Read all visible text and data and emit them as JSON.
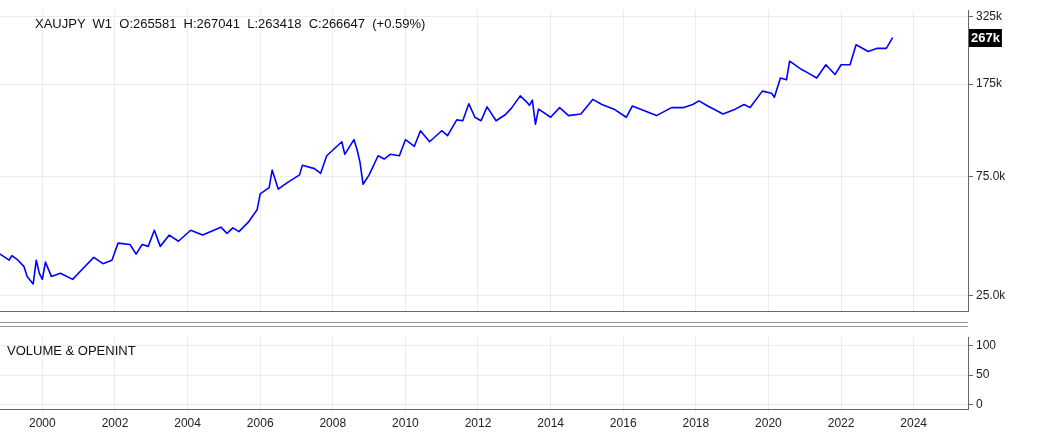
{
  "chart_data": [
    {
      "type": "line",
      "title": "XAUJPY  W1  O:265581  H:267041  L:263418  C:266647  (+0.59%)",
      "x": [
        "1998-11",
        "1999-02",
        "1999-03",
        "1999-05",
        "1999-07",
        "1999-08",
        "1999-10",
        "1999-11",
        "1999-12",
        "2000-01",
        "2000-02",
        "2000-04",
        "2000-07",
        "2000-11",
        "2001-02",
        "2001-06",
        "2001-09",
        "2001-12",
        "2002-02",
        "2002-06",
        "2002-08",
        "2002-10",
        "2002-12",
        "2003-02",
        "2003-04",
        "2003-07",
        "2003-10",
        "2004-02",
        "2004-06",
        "2004-12",
        "2005-02",
        "2005-04",
        "2005-06",
        "2005-09",
        "2005-12",
        "2006-01",
        "2006-04",
        "2006-05",
        "2006-07",
        "2006-10",
        "2007-02",
        "2007-03",
        "2007-07",
        "2007-09",
        "2007-11",
        "2008-04",
        "2008-05",
        "2008-08",
        "2008-09",
        "2008-10",
        "2008-11",
        "2009-01",
        "2009-04",
        "2009-06",
        "2009-08",
        "2009-11",
        "2010-01",
        "2010-04",
        "2010-06",
        "2010-09",
        "2011-01",
        "2011-03",
        "2011-06",
        "2011-08",
        "2011-10",
        "2011-12",
        "2012-02",
        "2012-04",
        "2012-07",
        "2012-10",
        "2012-12",
        "2013-03",
        "2013-05",
        "2013-06",
        "2013-07",
        "2013-08",
        "2013-09",
        "2014-01",
        "2014-04",
        "2014-07",
        "2014-11",
        "2015-03",
        "2015-06",
        "2015-10",
        "2016-02",
        "2016-04",
        "2016-08",
        "2016-12",
        "2017-05",
        "2017-09",
        "2017-12",
        "2018-02",
        "2018-05",
        "2018-10",
        "2019-02",
        "2019-05",
        "2019-07",
        "2019-11",
        "2020-02",
        "2020-03",
        "2020-05",
        "2020-07",
        "2020-08",
        "2020-12",
        "2021-02",
        "2021-05",
        "2021-08",
        "2021-11",
        "2022-01",
        "2022-04",
        "2022-06",
        "2022-10",
        "2023-01",
        "2023-04",
        "2023-06"
      ],
      "series": [
        {
          "color": "#0000ff",
          "values": [
            36700,
            34700,
            36200,
            34700,
            32700,
            29900,
            27900,
            34700,
            30800,
            29100,
            34100,
            29900,
            30800,
            29100,
            31800,
            35600,
            33600,
            34700,
            40600,
            40100,
            36700,
            40100,
            39400,
            45700,
            39400,
            43700,
            41300,
            45700,
            43700,
            47000,
            44400,
            46700,
            45100,
            49100,
            55200,
            63800,
            67600,
            79400,
            66700,
            70800,
            76000,
            83000,
            80500,
            77100,
            90600,
            103000,
            91800,
            105000,
            95900,
            85300,
            69700,
            76000,
            90600,
            87900,
            91800,
            90600,
            105000,
            98800,
            114000,
            103000,
            114000,
            109000,
            126000,
            125000,
            146000,
            129000,
            125000,
            142000,
            125000,
            132000,
            140000,
            157000,
            149000,
            144000,
            151000,
            121000,
            139000,
            129000,
            141000,
            131000,
            133000,
            152000,
            145000,
            139000,
            129000,
            143000,
            137000,
            131000,
            141000,
            141000,
            145000,
            150000,
            143000,
            133000,
            139000,
            145000,
            141000,
            164000,
            161000,
            155000,
            185000,
            182000,
            216000,
            200000,
            194000,
            185000,
            209000,
            191000,
            209000,
            209000,
            251000,
            236000,
            243000,
            243000,
            267000
          ]
        }
      ],
      "xlim": [
        "1998-11",
        "2025-07"
      ],
      "xticks": [
        "2000",
        "2002",
        "2004",
        "2006",
        "2008",
        "2010",
        "2012",
        "2014",
        "2016",
        "2018",
        "2020",
        "2022",
        "2024"
      ],
      "ylim": [
        21600,
        345000
      ],
      "yticks": [
        {
          "value": 25000,
          "label": "25.0k"
        },
        {
          "value": 75000,
          "label": "75.0k"
        },
        {
          "value": 175000,
          "label": "175k"
        },
        {
          "value": 325000,
          "label": "325k"
        }
      ],
      "log": "y",
      "grid": true,
      "marker": "none",
      "line_style": "solid",
      "tick_labels": "y",
      "annotations": [
        "267k"
      ]
    },
    {
      "type": "line",
      "title": "VOLUME & OPENINT",
      "xlim": [
        "1998-11",
        "2025-07"
      ],
      "xticks": [
        "2000",
        "2002",
        "2004",
        "2006",
        "2008",
        "2010",
        "2012",
        "2014",
        "2016",
        "2018",
        "2020",
        "2022",
        "2024"
      ],
      "ylim": [
        -8,
        114
      ],
      "yticks": [
        0,
        50,
        100
      ],
      "grid": true
    }
  ]
}
